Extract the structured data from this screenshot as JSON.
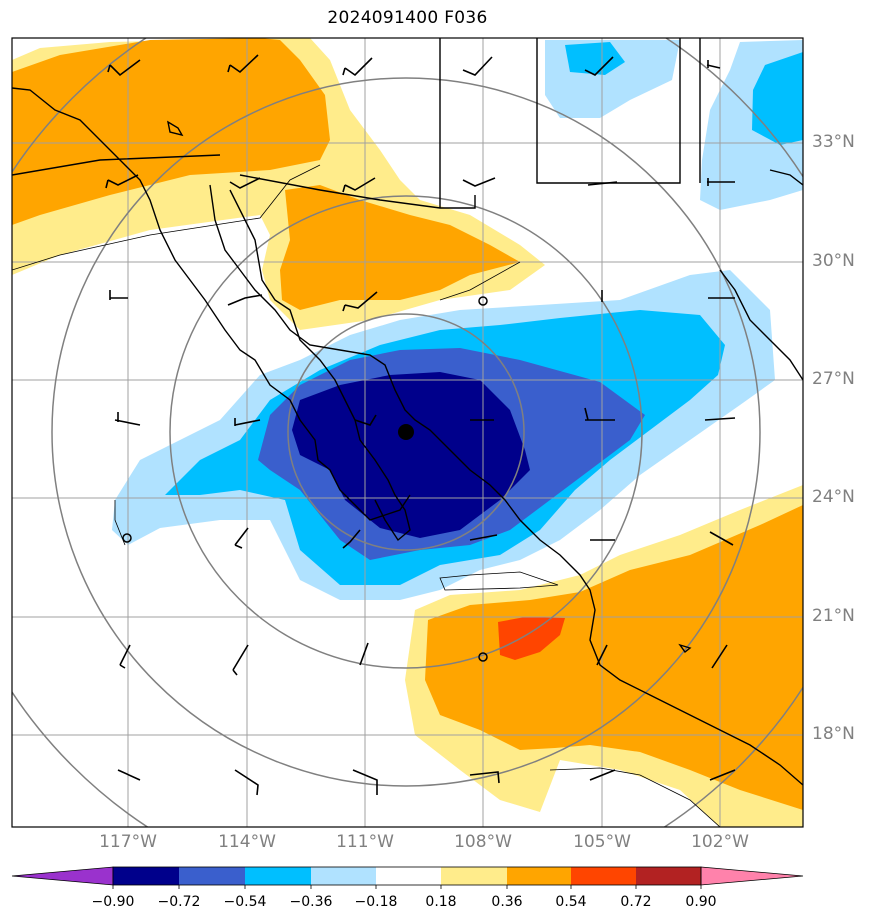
{
  "title": "2024091400 F036",
  "colors": {
    "neg_extend": "#9a32cd",
    "neg_090": "#00008b",
    "neg_072": "#3a5fcd",
    "neg_054": "#00bfff",
    "neg_036": "#b0e2ff",
    "neutral": "#ffffff",
    "pos_036": "#ffec8b",
    "pos_054": "#ffa500",
    "pos_072": "#ff4500",
    "pos_090": "#b22222",
    "pos_extend": "#ff82ab",
    "grid": "#a0a0a0",
    "rings": "#808080"
  },
  "map": {
    "lat_labels": [
      "33°N",
      "30°N",
      "27°N",
      "24°N",
      "21°N",
      "18°N"
    ],
    "lon_labels": [
      "117°W",
      "114°W",
      "111°W",
      "108°W",
      "105°W",
      "102°W"
    ],
    "center_marker": "filled-circle"
  },
  "colorbar": {
    "ticks": [
      "−0.90",
      "−0.72",
      "−0.54",
      "−0.36",
      "−0.18",
      "0.18",
      "0.36",
      "0.54",
      "0.72",
      "0.90"
    ]
  }
}
